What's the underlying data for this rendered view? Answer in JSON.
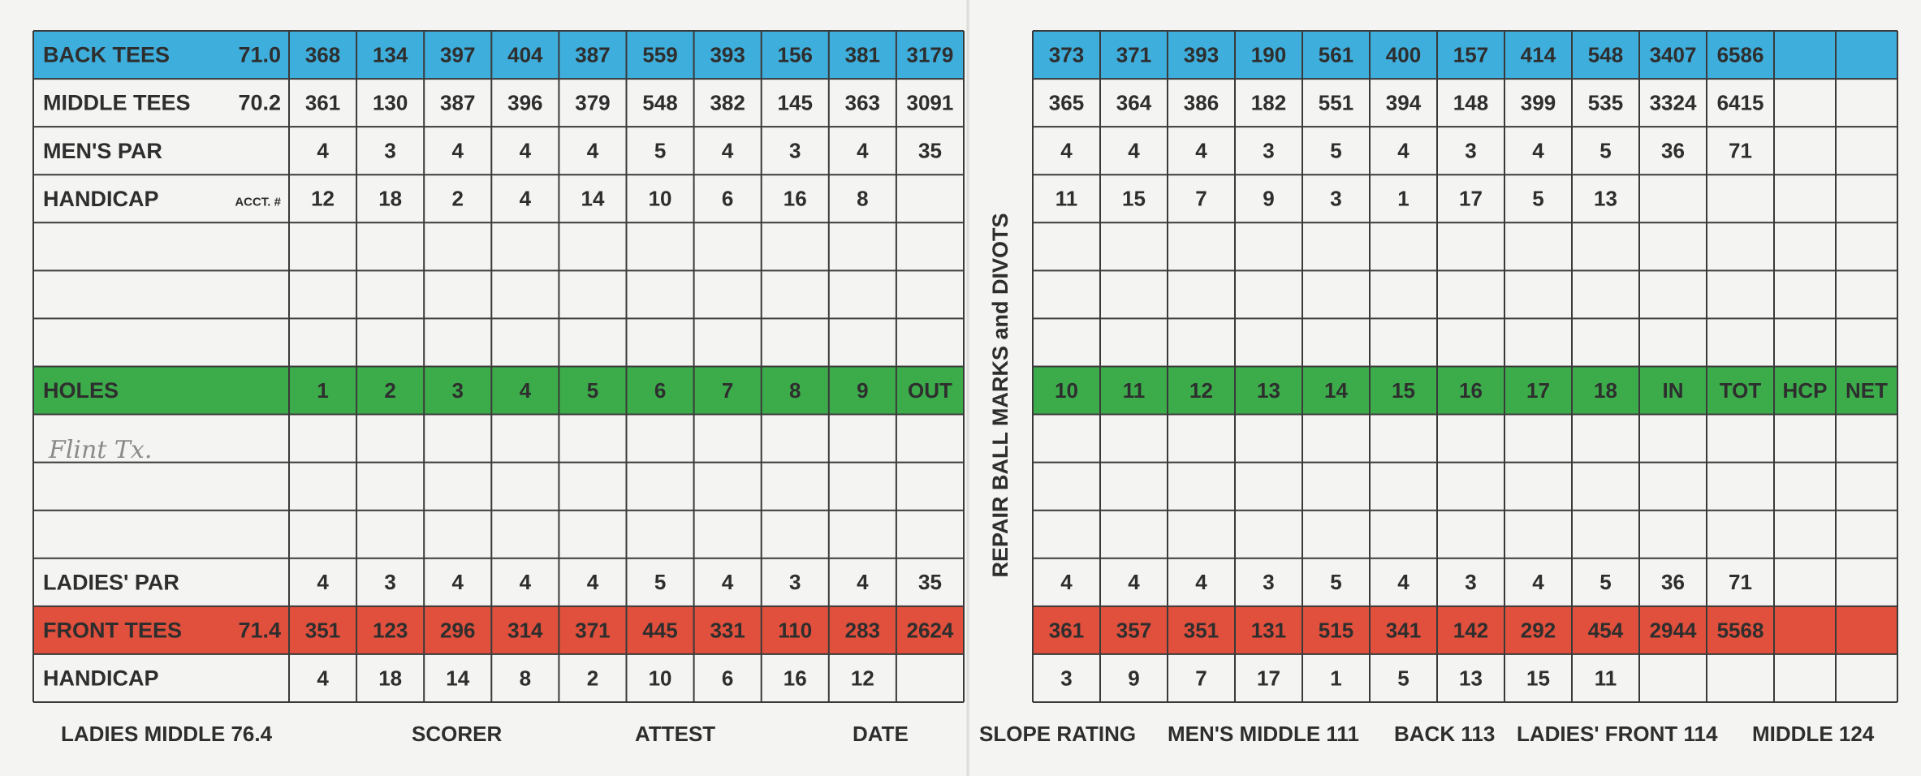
{
  "front_nine": {
    "top_rows": [
      {
        "label": "BACK TEES",
        "rating": "71.0",
        "cells": [
          "368",
          "134",
          "397",
          "404",
          "387",
          "559",
          "393",
          "156",
          "381",
          "3179"
        ]
      },
      {
        "label": "MIDDLE TEES",
        "rating": "70.2",
        "cells": [
          "361",
          "130",
          "387",
          "396",
          "379",
          "548",
          "382",
          "145",
          "363",
          "3091"
        ]
      },
      {
        "label": "MEN'S PAR",
        "cells": [
          "4",
          "3",
          "4",
          "4",
          "4",
          "5",
          "4",
          "3",
          "4",
          "35"
        ]
      },
      {
        "label": "HANDICAP",
        "note": "ACCT. #",
        "cells": [
          "12",
          "18",
          "2",
          "4",
          "14",
          "10",
          "6",
          "16",
          "8"
        ]
      }
    ],
    "holes": {
      "label": "HOLES",
      "cells": [
        "1",
        "2",
        "3",
        "4",
        "5",
        "6",
        "7",
        "8",
        "9",
        "OUT"
      ]
    },
    "bottom_rows": [
      {
        "label": "LADIES' PAR",
        "cells": [
          "4",
          "3",
          "4",
          "4",
          "4",
          "5",
          "4",
          "3",
          "4",
          "35"
        ]
      },
      {
        "label": "FRONT TEES",
        "rating": "71.4",
        "cells": [
          "351",
          "123",
          "296",
          "314",
          "371",
          "445",
          "331",
          "110",
          "283",
          "2624"
        ]
      },
      {
        "label": "HANDICAP",
        "cells": [
          "4",
          "18",
          "14",
          "8",
          "2",
          "10",
          "6",
          "16",
          "12"
        ]
      }
    ]
  },
  "back_nine": {
    "top_rows": [
      {
        "cells": [
          "373",
          "371",
          "393",
          "190",
          "561",
          "400",
          "157",
          "414",
          "548",
          "3407",
          "6586"
        ]
      },
      {
        "cells": [
          "365",
          "364",
          "386",
          "182",
          "551",
          "394",
          "148",
          "399",
          "535",
          "3324",
          "6415"
        ]
      },
      {
        "cells": [
          "4",
          "4",
          "4",
          "3",
          "5",
          "4",
          "3",
          "4",
          "5",
          "36",
          "71"
        ]
      },
      {
        "cells": [
          "11",
          "15",
          "7",
          "9",
          "3",
          "1",
          "17",
          "5",
          "13"
        ]
      }
    ],
    "holes": {
      "cells": [
        "10",
        "11",
        "12",
        "13",
        "14",
        "15",
        "16",
        "17",
        "18",
        "IN",
        "TOT",
        "HCP",
        "NET"
      ]
    },
    "bottom_rows": [
      {
        "cells": [
          "4",
          "4",
          "4",
          "3",
          "5",
          "4",
          "3",
          "4",
          "5",
          "36",
          "71"
        ]
      },
      {
        "cells": [
          "361",
          "357",
          "351",
          "131",
          "515",
          "341",
          "142",
          "292",
          "454",
          "2944",
          "5568"
        ]
      },
      {
        "cells": [
          "3",
          "9",
          "7",
          "17",
          "1",
          "5",
          "13",
          "15",
          "11"
        ]
      }
    ]
  },
  "side_note": "REPAIR BALL MARKS and DIVOTS",
  "handwriting": "Flint Tx.",
  "footer": [
    "LADIES MIDDLE 76.4",
    "SCORER",
    "ATTEST",
    "DATE",
    "SLOPE RATING",
    "MEN'S MIDDLE 111",
    "BACK 113",
    "LADIES' FRONT 114",
    "MIDDLE 124"
  ]
}
